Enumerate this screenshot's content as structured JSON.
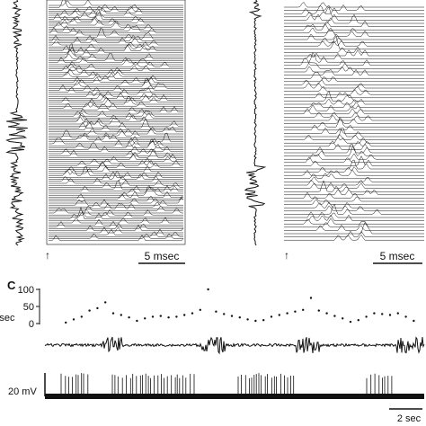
{
  "panel_c": {
    "label": "C",
    "rate_axis": {
      "ylabel": "Imp/sec",
      "ticks": [
        "100",
        "50",
        "0"
      ],
      "ylim": [
        0,
        100
      ]
    },
    "voltage_scale_label": "20 mV",
    "time_scale_label": "2 sec"
  },
  "raster_panels": [
    {
      "scale_label": "5 msec",
      "stim_marker": "↑"
    },
    {
      "scale_label": "5 msec",
      "stim_marker": "↑"
    }
  ],
  "chart_data": {
    "type": "scatter",
    "title": "",
    "xlabel": "",
    "ylabel": "Imp/sec",
    "ylim": [
      0,
      100
    ],
    "x": [
      0.3,
      0.5,
      0.7,
      0.9,
      1.1,
      1.3,
      1.5,
      1.7,
      1.9,
      2.1,
      2.3,
      2.5,
      2.7,
      2.9,
      3.1,
      3.3,
      3.5,
      3.7,
      3.9,
      4.1,
      4.3,
      4.5,
      4.7,
      4.9,
      5.1,
      5.3,
      5.5,
      5.7,
      5.9,
      6.1,
      6.3,
      6.5,
      6.7,
      6.9,
      7.1,
      7.3,
      7.5,
      7.7,
      7.9,
      8.1,
      8.3,
      8.5,
      8.7,
      8.9,
      9.1
    ],
    "series": [
      {
        "values": [
          3,
          12,
          20,
          38,
          45,
          62,
          30,
          25,
          18,
          8,
          15,
          20,
          22,
          18,
          20,
          25,
          30,
          40,
          100,
          35,
          28,
          22,
          18,
          12,
          8,
          10,
          20,
          25,
          30,
          35,
          40,
          75,
          38,
          30,
          22,
          15,
          5,
          10,
          20,
          30,
          28,
          25,
          30,
          20,
          8
        ]
      }
    ]
  }
}
